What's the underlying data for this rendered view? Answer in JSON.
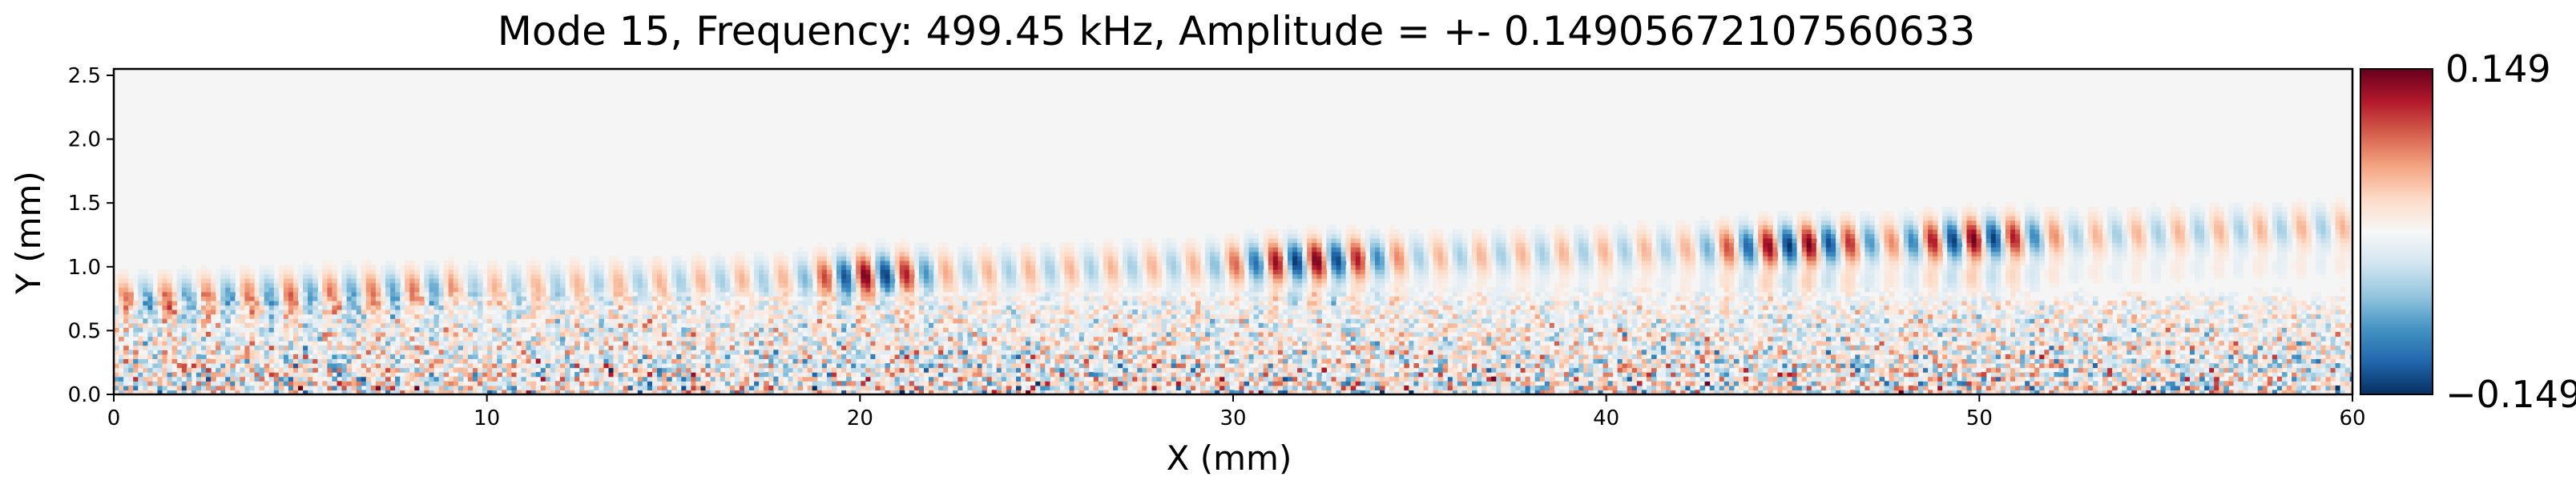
{
  "chart_data": {
    "type": "heatmap",
    "title": "Mode 15, Frequency: 499.45 kHz, Amplitude = +- 0.14905672107560633",
    "xlabel": "X (mm)",
    "ylabel": "Y (mm)",
    "xlim": [
      0,
      60
    ],
    "ylim": [
      0,
      2.55
    ],
    "xticks": [
      0,
      10,
      20,
      30,
      40,
      50,
      60
    ],
    "xtick_labels": [
      "0",
      "10",
      "20",
      "30",
      "40",
      "50",
      "60"
    ],
    "yticks": [
      0.0,
      0.5,
      1.0,
      1.5,
      2.0,
      2.5
    ],
    "ytick_labels": [
      "0.0",
      "0.5",
      "1.0",
      "1.5",
      "2.0",
      "2.5"
    ],
    "colormap": "RdBu_r",
    "colorbar": {
      "min": -0.149,
      "max": 0.149,
      "max_label": "0.149",
      "min_label": "−0.149",
      "colors": [
        "#053061",
        "#2166ac",
        "#4393c3",
        "#92c5de",
        "#d1e5f0",
        "#f7f7f7",
        "#fddbc7",
        "#f4a582",
        "#d6604d",
        "#b2182b",
        "#67001f"
      ]
    },
    "wave_band": {
      "center_y_start": 0.72,
      "center_y_end": 1.3,
      "wavelength_mm": 1.1,
      "strong_x_ranges": [
        [
          19,
          21.5
        ],
        [
          30,
          34
        ],
        [
          43,
          47
        ],
        [
          48,
          51.5
        ]
      ]
    },
    "noise_region_y_max": 0.7,
    "grid": false
  }
}
